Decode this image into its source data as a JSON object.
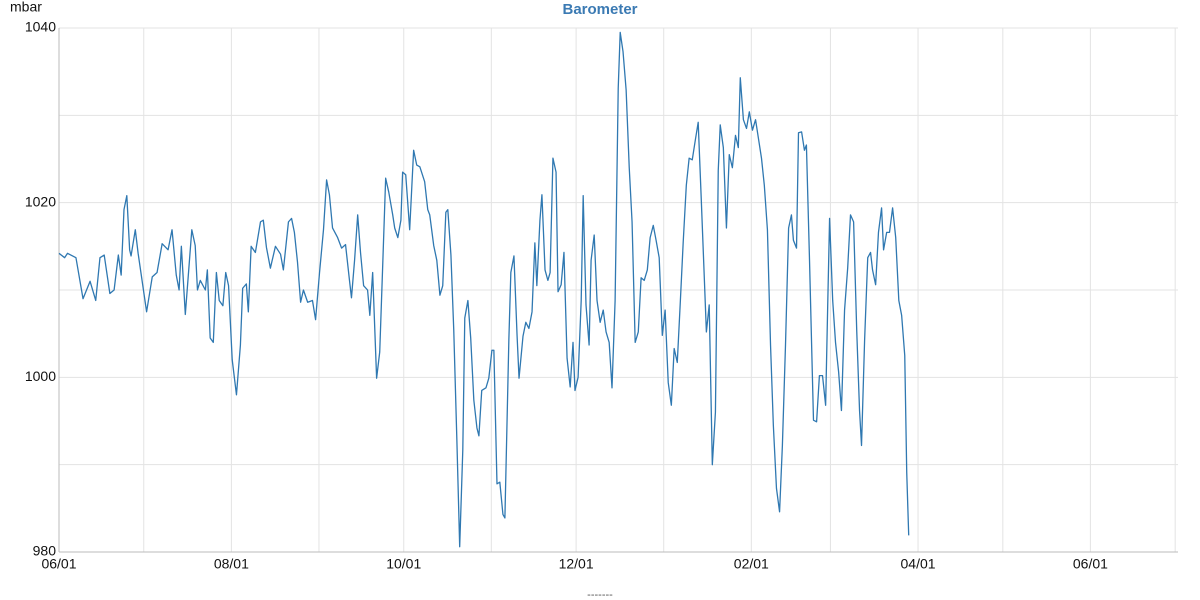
{
  "chart_data": {
    "type": "line",
    "title": "Barometer",
    "y_label": "mbar",
    "x": [
      0,
      2,
      3,
      6,
      8.5,
      11,
      13,
      14.5,
      16,
      18,
      19.5,
      21,
      22,
      23,
      24,
      25,
      25.5,
      27,
      28,
      31,
      33,
      34.7,
      36.5,
      38.6,
      40,
      41.5,
      42.5,
      43.3,
      44.7,
      46.5,
      47,
      48.2,
      49,
      50,
      51.8,
      52.5,
      53.5,
      54.6,
      55.7,
      56.7,
      58,
      59,
      60,
      61.3,
      62.8,
      64.2,
      65,
      66.3,
      67,
      68,
      69.5,
      71.3,
      72.3,
      73.4,
      74.8,
      76.6,
      78.4,
      79.4,
      81.2,
      82.3,
      83.3,
      84.4,
      85.5,
      86.5,
      88,
      89.7,
      90.8,
      92.2,
      93.6,
      94.7,
      95.7,
      96.8,
      98.6,
      100,
      101.4,
      102.8,
      103.5,
      104.6,
      105.7,
      106.7,
      107.8,
      109.2,
      110,
      111,
      112.4,
      113.5,
      114.5,
      115.6,
      116.7,
      118.1,
      118.8,
      119.9,
      121,
      121.6,
      122.7,
      124.1,
      125.5,
      126.6,
      127.7,
      129.4,
      130.5,
      131.2,
      132.6,
      133.7,
      134.8,
      135.8,
      136.9,
      137.6,
      138.7,
      139.7,
      140.8,
      141.8,
      142.9,
      143.6,
      144.7,
      145.7,
      146.8,
      147.9,
      148.6,
      149.6,
      151.1,
      152.1,
      153.2,
      153.9,
      155,
      156,
      157.1,
      157.8,
      159.2,
      159.9,
      161,
      162.1,
      162.8,
      164.2,
      165.2,
      166.3,
      167.4,
      168.4,
      169.1,
      170.2,
      170.9,
      172,
      173,
      173.8,
      174.8,
      175.9,
      176.6,
      177.7,
      178.7,
      179.8,
      180.9,
      181.9,
      182.6,
      183.7,
      184.8,
      185.5,
      186.5,
      187.6,
      188.3,
      189.4,
      190.4,
      191.5,
      192.6,
      193.6,
      194.7,
      195.7,
      196.8,
      197.9,
      198.6,
      199.6,
      200.7,
      201.8,
      202.8,
      203.9,
      205,
      206,
      207.1,
      208.2,
      209.2,
      210.3,
      211.3,
      212.4,
      213.5,
      214.5,
      215.6,
      216.7,
      217.7,
      218.8,
      219.9,
      220.9,
      222,
      223,
      224.1,
      225.2,
      226.2,
      227.3,
      228.4,
      229.1,
      230.1,
      231.2,
      232.3,
      233.3,
      234,
      235.1,
      236.2,
      237.2,
      238.3,
      239.4,
      240.4,
      241.1,
      242.2,
      243.3,
      244.3,
      245.4,
      246.5,
      247.5,
      248.6,
      249.6,
      250.7,
      251.8,
      252.8,
      253.9,
      255,
      256,
      257.1,
      258.2,
      259.2,
      259.9,
      261,
      261.7,
      262.8,
      263.8,
      264.5,
      265.6,
      267,
      268.1,
      269.1,
      270.2,
      271.3,
      272,
      272.7,
      273.8,
      274.8,
      275.9,
      276.9,
      278,
      279.1,
      280.1,
      281.2,
      282.3,
      283.3,
      284,
      285.1,
      286.2,
      287.2,
      287.9,
      289,
      290,
      291.1,
      291.8,
      292.9,
      293.9,
      295,
      296.1,
      297.2,
      298.2,
      299.3,
      300,
      300.7
    ],
    "series": [
      {
        "name": "-------",
        "color": "#2f78b1",
        "values": [
          1014.2,
          1013.7,
          1014.2,
          1013.7,
          1009,
          1011,
          1008.8,
          1013.7,
          1014,
          1009.6,
          1010,
          1014,
          1011.7,
          1019.2,
          1020.8,
          1014.6,
          1013.9,
          1016.9,
          1014.2,
          1007.5,
          1011.5,
          1012,
          1015.3,
          1014.6,
          1016.9,
          1011.7,
          1010,
          1015,
          1007.2,
          1014.8,
          1016.9,
          1015.1,
          1010,
          1011.1,
          1010,
          1012.3,
          1004.5,
          1004,
          1012,
          1008.8,
          1008.2,
          1012,
          1010.5,
          1002,
          998,
          1003.7,
          1010.2,
          1010.7,
          1007.5,
          1015,
          1014.3,
          1017.8,
          1018,
          1014.9,
          1012.5,
          1015,
          1014.1,
          1012.3,
          1017.8,
          1018.2,
          1016.6,
          1013.2,
          1008.6,
          1010,
          1008.6,
          1008.8,
          1006.6,
          1012,
          1016.9,
          1022.6,
          1020.9,
          1017.1,
          1016,
          1014.8,
          1015.2,
          1011.1,
          1009.1,
          1013.4,
          1018.6,
          1014.3,
          1010.5,
          1010,
          1007.1,
          1012,
          999.9,
          1002.9,
          1012.3,
          1022.8,
          1021.2,
          1018.6,
          1017.1,
          1016,
          1018,
          1023.5,
          1023.2,
          1016.9,
          1026,
          1024.3,
          1024.1,
          1022.4,
          1019.2,
          1018.6,
          1015.1,
          1013.4,
          1009.4,
          1010.5,
          1018.9,
          1019.2,
          1014,
          1005.4,
          992.8,
          980.6,
          991.7,
          1006.8,
          1008.8,
          1004.5,
          997.4,
          994.2,
          993.3,
          998.5,
          998.8,
          999.9,
          1003.1,
          1003.1,
          987.8,
          988,
          984.3,
          983.9,
          1004.3,
          1012,
          1013.9,
          1004.8,
          999.9,
          1004.7,
          1006.3,
          1005.6,
          1007.5,
          1015.4,
          1010.5,
          1018,
          1020.9,
          1012.3,
          1011.1,
          1012,
          1025.1,
          1023.5,
          1009.8,
          1010.6,
          1014.3,
          1002.2,
          998.9,
          1004,
          998.5,
          1000,
          1008.8,
          1020.8,
          1008.3,
          1003.7,
          1013.4,
          1016.3,
          1008.8,
          1006.3,
          1007.7,
          1005.2,
          1004,
          998.8,
          1008.8,
          1033.1,
          1039.5,
          1037.3,
          1032.9,
          1024,
          1017.8,
          1004,
          1005.2,
          1011.4,
          1011.1,
          1012.3,
          1016,
          1017.4,
          1015.7,
          1013.7,
          1004.8,
          1007.7,
          999.4,
          996.8,
          1003.3,
          1001.7,
          1008.8,
          1015.5,
          1022,
          1025.1,
          1024.9,
          1027.2,
          1029.2,
          1020.3,
          1011.1,
          1005.2,
          1008.3,
          990,
          996,
          1023.7,
          1028.9,
          1026.3,
          1017.1,
          1025.5,
          1024,
          1027.7,
          1026.3,
          1034.3,
          1029.5,
          1028.5,
          1030.4,
          1028.3,
          1029.5,
          1027.4,
          1025.1,
          1022,
          1016.9,
          1003.7,
          994.5,
          987.3,
          984.6,
          992.2,
          1003.7,
          1017.1,
          1018.6,
          1015.7,
          1014.8,
          1028,
          1028.1,
          1026,
          1026.6,
          1013.4,
          995.1,
          994.9,
          1000.2,
          1000.2,
          996.8,
          1007.7,
          1018.2,
          1008.8,
          1004,
          1000.6,
          996.2,
          1007.7,
          1012.5,
          1018.6,
          1017.8,
          1005.4,
          996.2,
          992.2,
          1004.3,
          1013.7,
          1014.3,
          1012.3,
          1010.6,
          1016.6,
          1019.4,
          1014.6,
          1016.6,
          1016.6,
          1019.4,
          1016,
          1008.8,
          1007.1,
          1002.5,
          989.1,
          981.9
        ]
      }
    ],
    "xlim": [
      0,
      396
    ],
    "xticks": [
      {
        "value": 0,
        "label": "06/01"
      },
      {
        "value": 30,
        "label": null
      },
      {
        "value": 61,
        "label": "08/01"
      },
      {
        "value": 92,
        "label": null
      },
      {
        "value": 122,
        "label": "10/01"
      },
      {
        "value": 153,
        "label": null
      },
      {
        "value": 183,
        "label": "12/01"
      },
      {
        "value": 214,
        "label": null
      },
      {
        "value": 245,
        "label": "02/01"
      },
      {
        "value": 273,
        "label": null
      },
      {
        "value": 304,
        "label": "04/01"
      },
      {
        "value": 334,
        "label": null
      },
      {
        "value": 365,
        "label": "06/01"
      },
      {
        "value": 395,
        "label": null
      }
    ],
    "ylim": [
      980,
      1040
    ],
    "yticks": [
      980,
      {
        "value": 990,
        "label": null
      },
      1000,
      {
        "value": 1010,
        "label": null
      },
      1020,
      {
        "value": 1030,
        "label": null
      },
      1040
    ],
    "grid": true,
    "legend": "bottom"
  }
}
